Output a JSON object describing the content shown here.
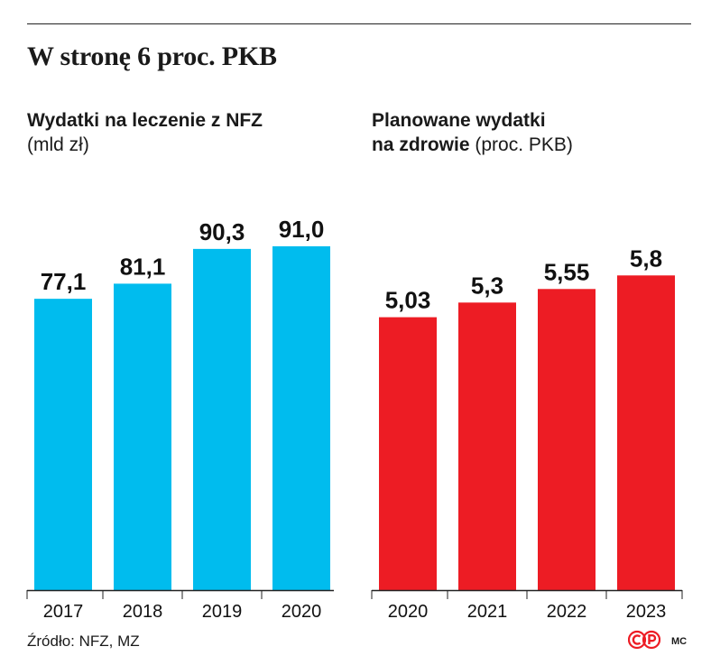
{
  "title": "W stronę 6 proc. PKB",
  "source": "Źródło: NFZ, MZ",
  "author": "MC",
  "logo_text": "CP",
  "colors": {
    "left_bars": "#00bcee",
    "right_bars": "#ed1c24",
    "logo": "#ed1c24",
    "axis": "#222222"
  },
  "chart_data": [
    {
      "type": "bar",
      "title": "Wydatki na leczenie z NFZ",
      "unit": "(mld zł)",
      "categories": [
        "2017",
        "2018",
        "2019",
        "2020"
      ],
      "values": [
        77.1,
        81.1,
        90.3,
        91.0
      ],
      "value_labels": [
        "77,1",
        "81,1",
        "90,3",
        "91,0"
      ],
      "ylim": [
        0,
        112
      ],
      "color": "#00bcee",
      "grid": false
    },
    {
      "type": "bar",
      "title_line1": "Planowane wydatki",
      "title_line2": "na zdrowie",
      "unit": "(proc. PKB)",
      "categories": [
        "2020",
        "2021",
        "2022",
        "2023"
      ],
      "values": [
        5.03,
        5.3,
        5.55,
        5.8
      ],
      "value_labels": [
        "5,03",
        "5,3",
        "5,55",
        "5,8"
      ],
      "ylim": [
        0,
        7.8
      ],
      "color": "#ed1c24",
      "grid": false
    }
  ]
}
